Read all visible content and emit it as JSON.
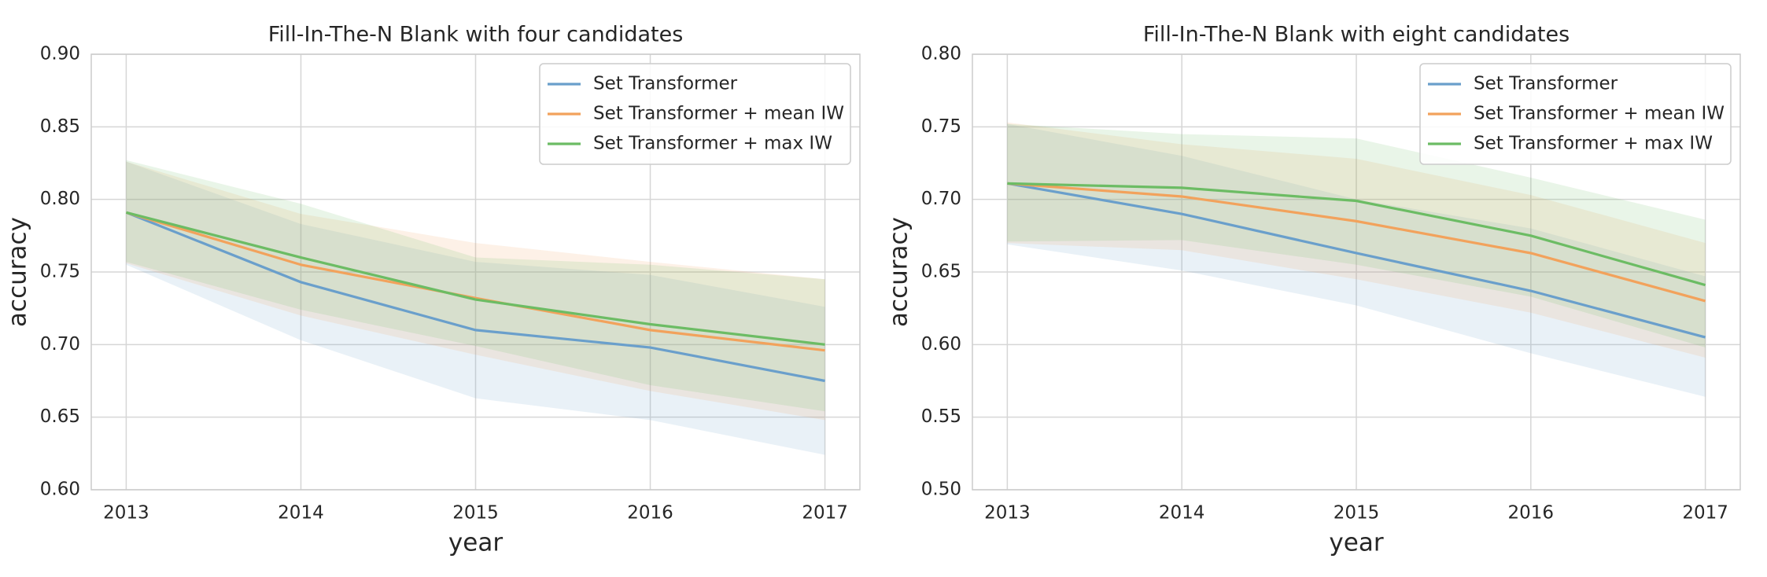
{
  "chart_data": [
    {
      "type": "line",
      "title": "Fill-In-The-N Blank with four candidates",
      "xlabel": "year",
      "ylabel": "accuracy",
      "categories": [
        "2013",
        "2014",
        "2015",
        "2016",
        "2017"
      ],
      "ylim": [
        0.6,
        0.9
      ],
      "yticks": [
        {
          "value": 0.6,
          "label": "0.60"
        },
        0.65,
        {
          "value": 0.7,
          "label": "0.70"
        },
        0.75,
        {
          "value": 0.8,
          "label": "0.80"
        },
        0.85,
        {
          "value": 0.9,
          "label": "0.90"
        }
      ],
      "grid": true,
      "legend": "upper right",
      "series": [
        {
          "name": "Set Transformer",
          "color": "#6a9fcb",
          "values": [
            0.791,
            0.743,
            0.71,
            0.698,
            0.675
          ],
          "lower": [
            0.755,
            0.703,
            0.663,
            0.648,
            0.624
          ],
          "upper": [
            0.826,
            0.783,
            0.757,
            0.748,
            0.726
          ]
        },
        {
          "name": "Set Transformer + mean IW",
          "color": "#f2a25c",
          "values": [
            0.791,
            0.755,
            0.732,
            0.71,
            0.696
          ],
          "lower": [
            0.756,
            0.72,
            0.693,
            0.668,
            0.648
          ],
          "upper": [
            0.826,
            0.79,
            0.77,
            0.757,
            0.745
          ]
        },
        {
          "name": "Set Transformer + max IW",
          "color": "#6cbc64",
          "values": [
            0.791,
            0.76,
            0.731,
            0.714,
            0.7
          ],
          "lower": [
            0.757,
            0.724,
            0.699,
            0.672,
            0.654
          ],
          "upper": [
            0.827,
            0.797,
            0.76,
            0.755,
            0.745
          ]
        }
      ]
    },
    {
      "type": "line",
      "title": "Fill-In-The-N Blank with eight candidates",
      "xlabel": "year",
      "ylabel": "accuracy",
      "categories": [
        "2013",
        "2014",
        "2015",
        "2016",
        "2017"
      ],
      "ylim": [
        0.5,
        0.8
      ],
      "yticks": [
        {
          "value": 0.5,
          "label": "0.50"
        },
        0.55,
        {
          "value": 0.6,
          "label": "0.60"
        },
        0.65,
        {
          "value": 0.7,
          "label": "0.70"
        },
        0.75,
        {
          "value": 0.8,
          "label": "0.80"
        }
      ],
      "grid": true,
      "legend": "upper right",
      "series": [
        {
          "name": "Set Transformer",
          "color": "#6a9fcb",
          "values": [
            0.711,
            0.69,
            0.663,
            0.637,
            0.605
          ],
          "lower": [
            0.669,
            0.651,
            0.627,
            0.594,
            0.564
          ],
          "upper": [
            0.752,
            0.73,
            0.7,
            0.68,
            0.647
          ]
        },
        {
          "name": "Set Transformer + mean IW",
          "color": "#f2a25c",
          "values": [
            0.711,
            0.702,
            0.685,
            0.663,
            0.63
          ],
          "lower": [
            0.67,
            0.665,
            0.645,
            0.622,
            0.591
          ],
          "upper": [
            0.753,
            0.738,
            0.728,
            0.703,
            0.67
          ]
        },
        {
          "name": "Set Transformer + max IW",
          "color": "#6cbc64",
          "values": [
            0.711,
            0.708,
            0.699,
            0.675,
            0.641
          ],
          "lower": [
            0.671,
            0.672,
            0.655,
            0.633,
            0.598
          ],
          "upper": [
            0.752,
            0.745,
            0.742,
            0.715,
            0.686
          ]
        }
      ]
    }
  ]
}
